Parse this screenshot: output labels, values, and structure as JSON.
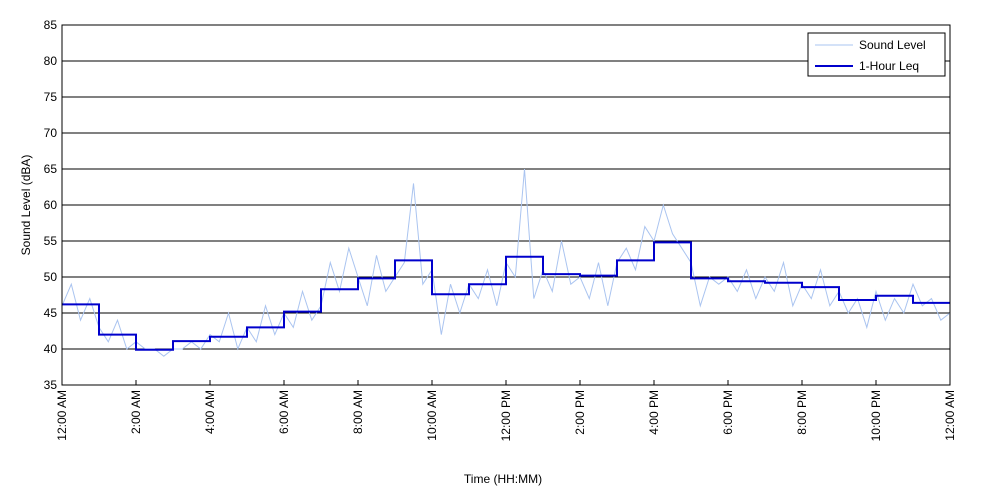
{
  "chart_data": {
    "type": "line",
    "xlabel": "Time (HH:MM)",
    "ylabel": "Sound Level (dBA)",
    "ylim": [
      35,
      85
    ],
    "yticks": [
      35,
      40,
      45,
      50,
      55,
      60,
      65,
      70,
      75,
      80,
      85
    ],
    "xlim": [
      0,
      24
    ],
    "xticks": [
      {
        "hour": 0,
        "label": "12:00 AM"
      },
      {
        "hour": 2,
        "label": "2:00 AM"
      },
      {
        "hour": 4,
        "label": "4:00 AM"
      },
      {
        "hour": 6,
        "label": "6:00 AM"
      },
      {
        "hour": 8,
        "label": "8:00 AM"
      },
      {
        "hour": 10,
        "label": "10:00 AM"
      },
      {
        "hour": 12,
        "label": "12:00 PM"
      },
      {
        "hour": 14,
        "label": "2:00 PM"
      },
      {
        "hour": 16,
        "label": "4:00 PM"
      },
      {
        "hour": 18,
        "label": "6:00 PM"
      },
      {
        "hour": 20,
        "label": "8:00 PM"
      },
      {
        "hour": 22,
        "label": "10:00 PM"
      },
      {
        "hour": 24,
        "label": "12:00 AM"
      }
    ],
    "grid": "horizontal",
    "legend_position": "top-right",
    "series": [
      {
        "name": "Sound Level",
        "color": "#aac4f0",
        "x": [
          0.0,
          0.25,
          0.5,
          0.75,
          1.0,
          1.25,
          1.5,
          1.75,
          2.0,
          2.25,
          2.5,
          2.75,
          3.0,
          3.25,
          3.5,
          3.75,
          4.0,
          4.25,
          4.5,
          4.75,
          5.0,
          5.25,
          5.5,
          5.75,
          6.0,
          6.25,
          6.5,
          6.75,
          7.0,
          7.25,
          7.5,
          7.75,
          8.0,
          8.25,
          8.5,
          8.75,
          9.0,
          9.25,
          9.5,
          9.75,
          10.0,
          10.25,
          10.5,
          10.75,
          11.0,
          11.25,
          11.5,
          11.75,
          12.0,
          12.25,
          12.5,
          12.75,
          13.0,
          13.25,
          13.5,
          13.75,
          14.0,
          14.25,
          14.5,
          14.75,
          15.0,
          15.25,
          15.5,
          15.75,
          16.0,
          16.25,
          16.5,
          16.75,
          17.0,
          17.25,
          17.5,
          17.75,
          18.0,
          18.25,
          18.5,
          18.75,
          19.0,
          19.25,
          19.5,
          19.75,
          20.0,
          20.25,
          20.5,
          20.75,
          21.0,
          21.25,
          21.5,
          21.75,
          22.0,
          22.25,
          22.5,
          22.75,
          23.0,
          23.25,
          23.5,
          23.75,
          24.0
        ],
        "values": [
          46,
          49,
          44,
          47,
          43,
          41,
          44,
          40,
          41,
          40,
          40,
          39,
          40,
          40,
          41,
          40,
          42,
          41,
          45,
          40,
          43,
          41,
          46,
          42,
          45,
          43,
          48,
          44,
          46,
          52,
          48,
          54,
          50,
          46,
          53,
          48,
          50,
          52,
          63,
          49,
          51,
          42,
          49,
          45,
          49,
          47,
          51,
          46,
          52,
          50,
          65,
          47,
          51,
          48,
          55,
          49,
          50,
          47,
          52,
          46,
          52,
          54,
          51,
          57,
          55,
          60,
          56,
          54,
          52,
          46,
          50,
          49,
          50,
          48,
          51,
          47,
          50,
          48,
          52,
          46,
          49,
          47,
          51,
          46,
          48,
          45,
          47,
          43,
          48,
          44,
          47,
          45,
          49,
          46,
          47,
          44,
          45
        ]
      },
      {
        "name": "1-Hour Leq",
        "color": "#0000cc",
        "step_starts": [
          0,
          1,
          2,
          3,
          4,
          5,
          6,
          7,
          8,
          9,
          10,
          11,
          12,
          13,
          14,
          15,
          16,
          17,
          18,
          19,
          20,
          21,
          22,
          23
        ],
        "values": [
          46.2,
          42.0,
          39.9,
          41.1,
          41.7,
          43.0,
          45.2,
          48.3,
          49.8,
          52.3,
          47.6,
          49.0,
          52.8,
          50.4,
          50.2,
          52.3,
          54.8,
          49.8,
          49.4,
          49.2,
          48.6,
          46.8,
          47.4,
          46.4
        ]
      }
    ]
  }
}
